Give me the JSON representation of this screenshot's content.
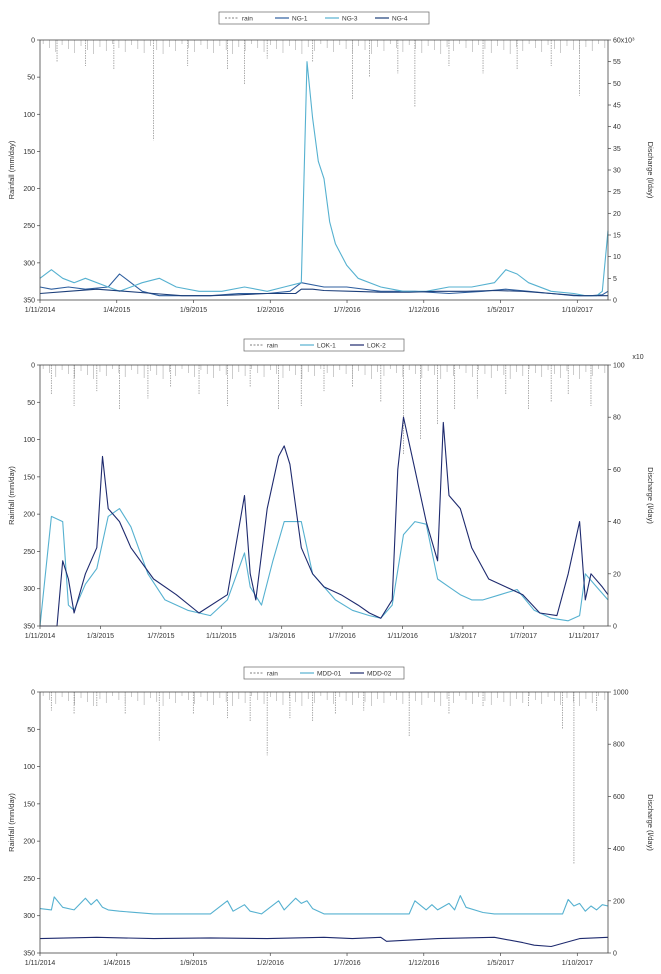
{
  "chart_data": [
    {
      "type": "line",
      "legend": {
        "placement": "top-center",
        "entries": [
          "rain",
          "NG-1",
          "NG-3",
          "NG-4"
        ]
      },
      "ylabel": "Rainfall (mm/day)",
      "y2label": "Discharge (l/day)",
      "ylim": [
        350,
        0
      ],
      "y2lim": [
        0,
        60
      ],
      "y2_multiplier": "60x10³",
      "yticks": [
        "0",
        "50",
        "100",
        "150",
        "200",
        "250",
        "300",
        "350"
      ],
      "y2ticks": [
        "0",
        "5",
        "10",
        "15",
        "20",
        "25",
        "30",
        "35",
        "40",
        "45",
        "50",
        "55",
        "60x10³"
      ],
      "xticks": [
        "1/11/2014",
        "1/4/2015",
        "1/9/2015",
        "1/2/2016",
        "1/7/2016",
        "1/12/2016",
        "1/5/2017",
        "1/10/2017"
      ],
      "colors": [
        "#9a9a9a",
        "#2f5f9f",
        "#56b1d0",
        "#1d3f7a"
      ],
      "rain_bars": [
        [
          0.03,
          30
        ],
        [
          0.08,
          35
        ],
        [
          0.13,
          40
        ],
        [
          0.2,
          135
        ],
        [
          0.26,
          35
        ],
        [
          0.33,
          40
        ],
        [
          0.36,
          60
        ],
        [
          0.4,
          25
        ],
        [
          0.48,
          30
        ],
        [
          0.55,
          80
        ],
        [
          0.58,
          50
        ],
        [
          0.63,
          45
        ],
        [
          0.66,
          90
        ],
        [
          0.72,
          35
        ],
        [
          0.78,
          45
        ],
        [
          0.84,
          40
        ],
        [
          0.9,
          35
        ],
        [
          0.95,
          75
        ]
      ],
      "series": [
        {
          "name": "NG-1",
          "x": [
            0,
            0.02,
            0.05,
            0.08,
            0.12,
            0.14,
            0.18,
            0.21,
            0.25,
            0.3,
            0.35,
            0.4,
            0.44,
            0.46,
            0.5,
            0.54,
            0.6,
            0.66,
            0.72,
            0.78,
            0.82,
            0.86,
            0.9,
            0.94,
            0.97,
            0.99,
            1
          ],
          "y": [
            3,
            2.5,
            3,
            2.5,
            3,
            6,
            2,
            1,
            1,
            1,
            1.5,
            1.5,
            2,
            4,
            3,
            3,
            2,
            2,
            1.5,
            2,
            2.5,
            2,
            1.5,
            1,
            1,
            1.2,
            2
          ]
        },
        {
          "name": "NG-3",
          "x": [
            0,
            0.02,
            0.04,
            0.06,
            0.08,
            0.12,
            0.14,
            0.16,
            0.18,
            0.21,
            0.24,
            0.28,
            0.32,
            0.36,
            0.4,
            0.43,
            0.46,
            0.47,
            0.48,
            0.49,
            0.5,
            0.51,
            0.52,
            0.54,
            0.56,
            0.6,
            0.64,
            0.68,
            0.72,
            0.76,
            0.8,
            0.82,
            0.84,
            0.86,
            0.9,
            0.94,
            0.96,
            0.98,
            0.99,
            1
          ],
          "y": [
            5,
            7,
            5,
            4,
            5,
            3,
            2,
            3,
            4,
            5,
            3,
            2,
            2,
            3,
            2,
            3,
            4,
            55,
            42,
            32,
            28,
            18,
            13,
            8,
            5,
            3,
            2,
            2,
            3,
            3,
            4,
            7,
            6,
            4,
            2,
            1.5,
            1,
            1,
            2,
            16
          ]
        },
        {
          "name": "NG-4",
          "x": [
            0,
            0.05,
            0.1,
            0.15,
            0.2,
            0.25,
            0.3,
            0.35,
            0.4,
            0.45,
            0.46,
            0.48,
            0.5,
            0.55,
            0.6,
            0.65,
            0.7,
            0.75,
            0.8,
            0.85,
            0.9,
            0.95,
            1
          ],
          "y": [
            1.5,
            2,
            2.5,
            2,
            1.5,
            1,
            1,
            1.2,
            1.5,
            1.5,
            2.5,
            2.5,
            2.2,
            2,
            1.8,
            1.8,
            2,
            2,
            2.2,
            2,
            1.5,
            1,
            1
          ]
        }
      ]
    },
    {
      "type": "line",
      "legend": {
        "placement": "top-center",
        "entries": [
          "rain",
          "LOK-1",
          "LOK-2"
        ]
      },
      "ylabel": "Rainfall (mm/day)",
      "y2label": "Discharge (l/day)",
      "ylim": [
        350,
        0
      ],
      "y2lim": [
        0,
        100
      ],
      "y2_multiplier": "x10",
      "yticks": [
        "0",
        "50",
        "100",
        "150",
        "200",
        "250",
        "300",
        "350"
      ],
      "y2ticks": [
        "0",
        "20",
        "40",
        "60",
        "80",
        "100"
      ],
      "xticks": [
        "1/11/2014",
        "1/3/2015",
        "1/7/2015",
        "1/11/2015",
        "1/3/2016",
        "1/7/2016",
        "1/11/2016",
        "1/3/2017",
        "1/7/2017",
        "1/11/2017"
      ],
      "colors": [
        "#9a9a9a",
        "#56b1d0",
        "#1e2a6e"
      ],
      "rain_bars": [
        [
          0.02,
          40
        ],
        [
          0.06,
          55
        ],
        [
          0.1,
          35
        ],
        [
          0.14,
          60
        ],
        [
          0.19,
          45
        ],
        [
          0.23,
          30
        ],
        [
          0.28,
          40
        ],
        [
          0.33,
          55
        ],
        [
          0.37,
          30
        ],
        [
          0.42,
          60
        ],
        [
          0.46,
          55
        ],
        [
          0.5,
          35
        ],
        [
          0.55,
          30
        ],
        [
          0.6,
          50
        ],
        [
          0.64,
          120
        ],
        [
          0.67,
          100
        ],
        [
          0.7,
          80
        ],
        [
          0.73,
          60
        ],
        [
          0.77,
          45
        ],
        [
          0.82,
          40
        ],
        [
          0.86,
          60
        ],
        [
          0.9,
          50
        ],
        [
          0.93,
          40
        ],
        [
          0.97,
          55
        ]
      ],
      "series": [
        {
          "name": "LOK-1",
          "x": [
            0,
            0.02,
            0.04,
            0.05,
            0.06,
            0.08,
            0.1,
            0.12,
            0.14,
            0.16,
            0.19,
            0.22,
            0.26,
            0.3,
            0.33,
            0.36,
            0.37,
            0.39,
            0.41,
            0.43,
            0.46,
            0.48,
            0.5,
            0.52,
            0.55,
            0.58,
            0.6,
            0.62,
            0.64,
            0.66,
            0.68,
            0.7,
            0.72,
            0.74,
            0.76,
            0.78,
            0.81,
            0.84,
            0.87,
            0.9,
            0.93,
            0.95,
            0.96,
            0.98,
            1
          ],
          "y": [
            0,
            42,
            40,
            8,
            6,
            16,
            22,
            42,
            45,
            38,
            20,
            10,
            6,
            4,
            10,
            28,
            15,
            8,
            25,
            40,
            40,
            20,
            15,
            10,
            6,
            4,
            3,
            8,
            35,
            40,
            39,
            18,
            15,
            12,
            10,
            10,
            12,
            14,
            6,
            3,
            2,
            4,
            20,
            15,
            10
          ]
        },
        {
          "name": "LOK-2",
          "x": [
            0,
            0.03,
            0.04,
            0.05,
            0.06,
            0.08,
            0.1,
            0.11,
            0.12,
            0.14,
            0.16,
            0.2,
            0.24,
            0.28,
            0.33,
            0.36,
            0.37,
            0.38,
            0.4,
            0.42,
            0.43,
            0.44,
            0.46,
            0.48,
            0.5,
            0.53,
            0.56,
            0.58,
            0.6,
            0.62,
            0.63,
            0.64,
            0.66,
            0.68,
            0.7,
            0.71,
            0.72,
            0.74,
            0.76,
            0.79,
            0.82,
            0.85,
            0.88,
            0.91,
            0.93,
            0.95,
            0.96,
            0.97,
            0.99,
            1
          ],
          "y": [
            0,
            0,
            25,
            18,
            5,
            20,
            30,
            65,
            45,
            40,
            30,
            18,
            12,
            5,
            12,
            50,
            20,
            10,
            45,
            65,
            69,
            62,
            30,
            20,
            15,
            12,
            8,
            5,
            3,
            10,
            60,
            80,
            60,
            40,
            25,
            78,
            50,
            45,
            30,
            18,
            15,
            12,
            5,
            4,
            20,
            40,
            10,
            20,
            15,
            12
          ]
        }
      ]
    },
    {
      "type": "line",
      "legend": {
        "placement": "top-center",
        "entries": [
          "rain",
          "MDD-01",
          "MDD-02"
        ]
      },
      "ylabel": "Rainfall (mm/day)",
      "y2label": "Discharge (l/day)",
      "ylim": [
        350,
        0
      ],
      "y2lim": [
        0,
        1000
      ],
      "yticks": [
        "0",
        "50",
        "100",
        "150",
        "200",
        "250",
        "300",
        "350"
      ],
      "y2ticks": [
        "0",
        "200",
        "400",
        "600",
        "800",
        "1000"
      ],
      "xticks": [
        "1/11/2014",
        "1/4/2015",
        "1/9/2015",
        "1/2/2016",
        "1/7/2016",
        "1/12/2016",
        "1/5/2017",
        "1/10/2017"
      ],
      "colors": [
        "#9a9a9a",
        "#56b1d0",
        "#1e2a6e"
      ],
      "rain_bars": [
        [
          0.02,
          25
        ],
        [
          0.06,
          30
        ],
        [
          0.1,
          20
        ],
        [
          0.15,
          30
        ],
        [
          0.21,
          65
        ],
        [
          0.27,
          30
        ],
        [
          0.33,
          35
        ],
        [
          0.37,
          40
        ],
        [
          0.4,
          85
        ],
        [
          0.44,
          35
        ],
        [
          0.48,
          40
        ],
        [
          0.52,
          30
        ],
        [
          0.57,
          25
        ],
        [
          0.65,
          60
        ],
        [
          0.72,
          30
        ],
        [
          0.78,
          20
        ],
        [
          0.86,
          20
        ],
        [
          0.92,
          50
        ],
        [
          0.94,
          230
        ],
        [
          0.98,
          25
        ]
      ],
      "series": [
        {
          "name": "MDD-01",
          "x": [
            0,
            0.02,
            0.025,
            0.04,
            0.06,
            0.08,
            0.09,
            0.1,
            0.11,
            0.12,
            0.14,
            0.2,
            0.3,
            0.33,
            0.34,
            0.36,
            0.37,
            0.39,
            0.42,
            0.43,
            0.45,
            0.46,
            0.47,
            0.48,
            0.5,
            0.52,
            0.55,
            0.6,
            0.65,
            0.66,
            0.68,
            0.69,
            0.7,
            0.72,
            0.73,
            0.74,
            0.75,
            0.78,
            0.8,
            0.84,
            0.9,
            0.92,
            0.93,
            0.94,
            0.95,
            0.96,
            0.97,
            0.98,
            0.99,
            1
          ],
          "y": [
            170,
            165,
            215,
            175,
            165,
            210,
            185,
            205,
            175,
            165,
            160,
            150,
            150,
            200,
            160,
            185,
            160,
            150,
            200,
            165,
            210,
            190,
            200,
            170,
            150,
            150,
            150,
            150,
            150,
            200,
            165,
            185,
            165,
            190,
            165,
            220,
            175,
            155,
            150,
            150,
            150,
            150,
            205,
            180,
            190,
            160,
            180,
            165,
            185,
            180
          ]
        },
        {
          "name": "MDD-02",
          "x": [
            0,
            0.1,
            0.2,
            0.3,
            0.4,
            0.5,
            0.55,
            0.6,
            0.61,
            0.7,
            0.8,
            0.85,
            0.87,
            0.9,
            0.95,
            1
          ],
          "y": [
            55,
            60,
            55,
            58,
            55,
            60,
            55,
            60,
            45,
            55,
            60,
            40,
            30,
            25,
            55,
            60
          ]
        }
      ]
    }
  ]
}
